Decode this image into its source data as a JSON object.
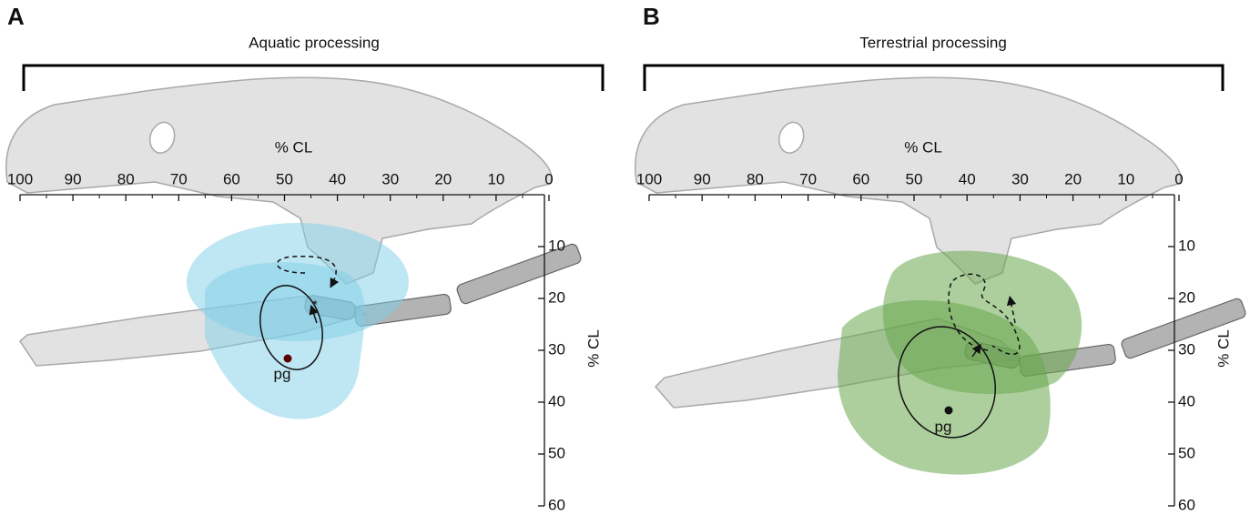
{
  "panels": [
    {
      "letter": "A",
      "title": "Aquatic processing",
      "x_axis_label": "% CL",
      "y_axis_label": "% CL",
      "xticks": [
        100,
        90,
        80,
        70,
        60,
        50,
        40,
        30,
        20,
        10,
        0
      ],
      "yticks": [
        10,
        20,
        30,
        40,
        50,
        60
      ],
      "point_label": "pg",
      "marker": "*"
    },
    {
      "letter": "B",
      "title": "Terrestrial processing",
      "x_axis_label": "% CL",
      "y_axis_label": "% CL",
      "xticks": [
        100,
        90,
        80,
        70,
        60,
        50,
        40,
        30,
        20,
        10,
        0
      ],
      "yticks": [
        10,
        20,
        30,
        40,
        50,
        60
      ],
      "point_label": "pg",
      "marker": "*"
    }
  ]
}
